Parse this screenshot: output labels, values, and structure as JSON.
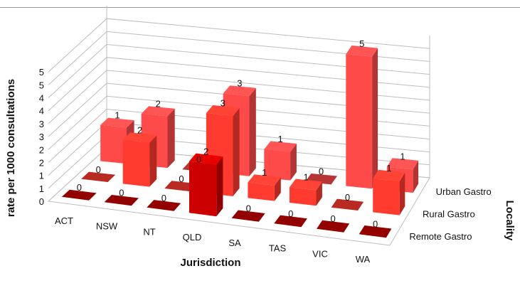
{
  "chart_data": {
    "type": "bar",
    "subtype": "3d-clustered",
    "title": "",
    "xlabel": "Jurisdiction",
    "ylabel": "rate per 1000 consultations",
    "zlabel": "Locality",
    "categories": [
      "ACT",
      "NSW",
      "NT",
      "QLD",
      "SA",
      "TAS",
      "VIC",
      "WA"
    ],
    "y_tick_labels": [
      "0",
      "1",
      "1",
      "2",
      "2",
      "3",
      "3",
      "4",
      "4",
      "5",
      "5"
    ],
    "ylim": [
      0,
      5.5
    ],
    "grid": true,
    "series": [
      {
        "name": "Remote Gastro",
        "color": "#cc0000",
        "values": [
          0,
          0,
          0,
          2,
          0,
          0,
          0,
          0
        ],
        "labels": [
          "0",
          "0",
          "0",
          "2",
          "0",
          "0",
          "0",
          "0"
        ]
      },
      {
        "name": "Rural Gastro",
        "color": "#ff3b2f",
        "values": [
          0,
          1.7,
          0,
          3.1,
          0.6,
          0.6,
          0,
          1.3
        ],
        "labels": [
          "0",
          "2",
          "0",
          "3",
          "1",
          "1",
          "0",
          "1"
        ]
      },
      {
        "name": "Urban Gastro",
        "color": "#ff4a4a",
        "values": [
          1.4,
          2.0,
          0,
          3.1,
          1.1,
          0,
          5.1,
          0.9
        ],
        "labels": [
          "1",
          "2",
          "0",
          "3",
          "1",
          "0",
          "5",
          "1"
        ]
      }
    ]
  }
}
